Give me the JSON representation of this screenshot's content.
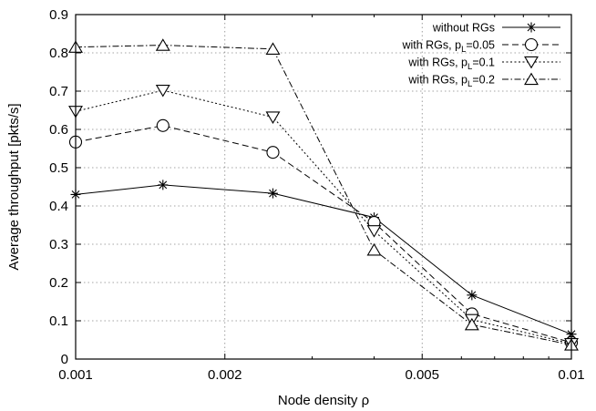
{
  "chart_data": {
    "type": "line",
    "xlabel": "Node density ρ",
    "ylabel": "Average throughput [pkts/s]",
    "x_scale": "log",
    "xlim": [
      0.001,
      0.01
    ],
    "ylim": [
      0,
      0.9
    ],
    "x_ticks": [
      0.001,
      0.002,
      0.005,
      0.01
    ],
    "x_tick_labels": [
      "0.001",
      "0.002",
      "0.005",
      "0.01"
    ],
    "y_ticks": [
      0,
      0.1,
      0.2,
      0.3,
      0.4,
      0.5,
      0.6,
      0.7,
      0.8,
      0.9
    ],
    "y_tick_labels": [
      "0",
      "0.1",
      "0.2",
      "0.3",
      "0.4",
      "0.5",
      "0.6",
      "0.7",
      "0.8",
      "0.9"
    ],
    "grid": true,
    "legend_position": "top-right",
    "x": [
      0.001,
      0.0015,
      0.0025,
      0.004,
      0.0063,
      0.01
    ],
    "series": [
      {
        "name": "without RGs",
        "name_main": "without RGs",
        "name_sub": "",
        "name_tail": "",
        "marker": "star",
        "dash": "",
        "values": [
          0.43,
          0.455,
          0.433,
          0.37,
          0.167,
          0.065
        ]
      },
      {
        "name": "with RGs, pL=0.05",
        "name_main": "with RGs, p",
        "name_sub": "L",
        "name_tail": "=0.05",
        "marker": "circle",
        "dash": "7 4",
        "values": [
          0.567,
          0.61,
          0.54,
          0.357,
          0.118,
          0.043
        ]
      },
      {
        "name": "with RGs, pL=0.1",
        "name_main": "with RGs, p",
        "name_sub": "L",
        "name_tail": "=0.1",
        "marker": "triangle-down",
        "dash": "2 2.5",
        "values": [
          0.647,
          0.702,
          0.632,
          0.335,
          0.103,
          0.04
        ]
      },
      {
        "name": "with RGs, pL=0.2",
        "name_main": "with RGs, p",
        "name_sub": "L",
        "name_tail": "=0.2",
        "marker": "triangle-up",
        "dash": "7 2.5 1.5 2.5",
        "values": [
          0.815,
          0.82,
          0.81,
          0.285,
          0.09,
          0.037
        ]
      }
    ]
  }
}
